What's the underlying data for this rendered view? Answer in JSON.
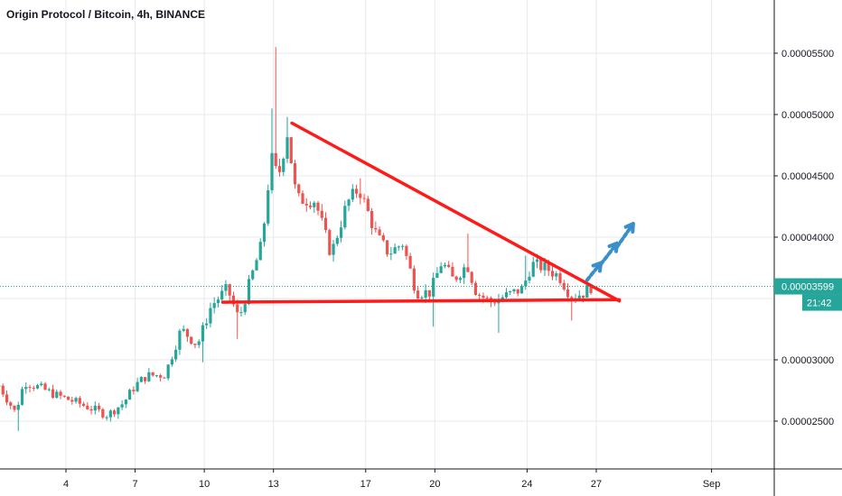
{
  "title": "Origin Protocol / Bitcoin, 4h, BINANCE",
  "colors": {
    "up": "#26a69a",
    "down": "#ef5350",
    "grid": "#e6e9ee",
    "axis": "#131722",
    "trendline": "#ff1a1a",
    "arrow": "#3a8fc9",
    "price_line": "#26a69a",
    "price_tag_bg": "#26a69a"
  },
  "chart_data": {
    "type": "candlestick",
    "title": "Origin Protocol / Bitcoin, 4h, BINANCE",
    "x_tick_labels": [
      "4",
      "7",
      "10",
      "13",
      "17",
      "20",
      "24",
      "27",
      "Sep"
    ],
    "x_tick_days": [
      4,
      7,
      10,
      13,
      17,
      20,
      24,
      27,
      32
    ],
    "y_tick_labels": [
      "0.00002500",
      "0.00003000",
      "0.00004000",
      "0.00004500",
      "0.00005000",
      "0.00005500"
    ],
    "y_tick_values": [
      2.5e-05,
      3e-05,
      4e-05,
      4.5e-05,
      5e-05,
      5.5e-05
    ],
    "ylim": [
      2.17e-05,
      5.9e-05
    ],
    "xlim_day": [
      1.1,
      34.5
    ],
    "last_price": {
      "label": "0.00003599",
      "value": 3.599e-05,
      "countdown": "21:42"
    },
    "trend_lines": {
      "resistance": {
        "from": [
          13.8,
          4.93e-05
        ],
        "to": [
          28.0,
          3.48e-05
        ]
      },
      "support": {
        "from": [
          10.8,
          3.47e-05
        ],
        "to": [
          28.0,
          3.49e-05
        ]
      }
    },
    "breakout_arrows_days": [
      [
        26.6,
        27.2
      ],
      [
        27.2,
        27.9
      ],
      [
        27.9,
        28.6
      ]
    ],
    "anchors": [
      [
        1.1,
        2.79e-05
      ],
      [
        1.8,
        2.57e-05
      ],
      [
        2.2,
        2.82e-05
      ],
      [
        2.9,
        2.77e-05
      ],
      [
        3.6,
        2.71e-05
      ],
      [
        4.5,
        2.65e-05
      ],
      [
        5.8,
        2.55e-05
      ],
      [
        6.5,
        2.65e-05
      ],
      [
        7.0,
        2.79e-05
      ],
      [
        7.5,
        2.87e-05
      ],
      [
        8.3,
        2.88e-05
      ],
      [
        9.0,
        3.25e-05
      ],
      [
        9.7,
        3.12e-05
      ],
      [
        10.3,
        3.44e-05
      ],
      [
        11.0,
        3.58e-05
      ],
      [
        11.5,
        3.33e-05
      ],
      [
        12.0,
        3.65e-05
      ],
      [
        12.5,
        3.95e-05
      ],
      [
        12.9,
        4.65e-05
      ],
      [
        13.2,
        4.48e-05
      ],
      [
        13.6,
        4.85e-05
      ],
      [
        14.0,
        4.31e-05
      ],
      [
        14.8,
        4.3e-05
      ],
      [
        15.5,
        3.86e-05
      ],
      [
        16.2,
        4.28e-05
      ],
      [
        16.7,
        4.4e-05
      ],
      [
        17.5,
        4e-05
      ],
      [
        18.0,
        3.87e-05
      ],
      [
        18.6,
        3.95e-05
      ],
      [
        19.2,
        3.55e-05
      ],
      [
        19.8,
        3.55e-05
      ],
      [
        20.3,
        3.8e-05
      ],
      [
        20.8,
        3.65e-05
      ],
      [
        21.4,
        3.78e-05
      ],
      [
        21.8,
        3.55e-05
      ],
      [
        22.4,
        3.47e-05
      ],
      [
        23.2,
        3.53e-05
      ],
      [
        23.8,
        3.58e-05
      ],
      [
        24.2,
        3.78e-05
      ],
      [
        24.8,
        3.75e-05
      ],
      [
        25.4,
        3.68e-05
      ],
      [
        25.9,
        3.52e-05
      ],
      [
        26.4,
        3.54e-05
      ],
      [
        26.8,
        3.6e-05
      ]
    ],
    "spikes": [
      {
        "day": 13.05,
        "high": 5.55e-05
      },
      {
        "day": 12.9,
        "high": 5.05e-05
      },
      {
        "day": 13.65,
        "high": 4.98e-05
      },
      {
        "day": 16.8,
        "high": 4.48e-05
      },
      {
        "day": 21.5,
        "high": 4.03e-05
      },
      {
        "day": 24.0,
        "high": 3.85e-05
      },
      {
        "day": 19.9,
        "low": 3.27e-05
      },
      {
        "day": 22.8,
        "low": 3.22e-05
      },
      {
        "day": 11.4,
        "low": 3.17e-05
      },
      {
        "day": 10.0,
        "low": 2.98e-05
      },
      {
        "day": 1.9,
        "low": 2.42e-05
      },
      {
        "day": 25.9,
        "low": 3.32e-05
      }
    ],
    "candles_per_day": 6
  }
}
